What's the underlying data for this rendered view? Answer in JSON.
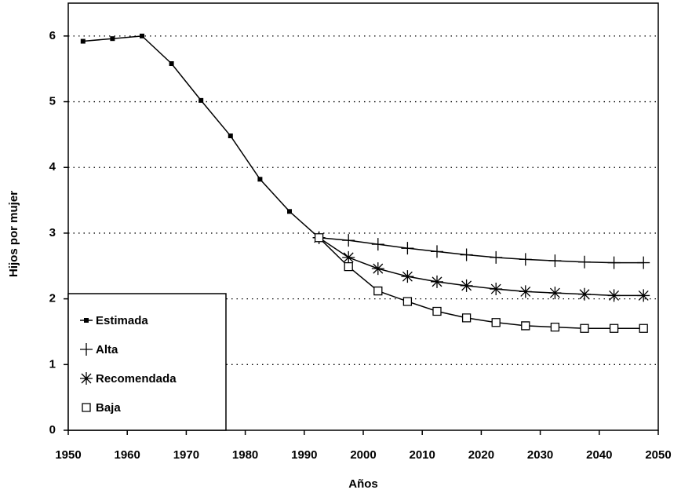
{
  "chart_data": {
    "type": "line",
    "x_label": "Años",
    "y_label": "Hijos por mujer",
    "x": [
      1952.5,
      1957.5,
      1962.5,
      1967.5,
      1972.5,
      1977.5,
      1982.5,
      1987.5,
      1992.5,
      1997.5,
      2002.5,
      2007.5,
      2012.5,
      2017.5,
      2022.5,
      2027.5,
      2032.5,
      2037.5,
      2042.5,
      2047.5
    ],
    "series": [
      {
        "name": "Estimada",
        "color": "#000000",
        "marker": "filled-square",
        "values": [
          5.92,
          5.96,
          6.0,
          5.58,
          5.02,
          4.48,
          3.82,
          3.33,
          2.93,
          null,
          null,
          null,
          null,
          null,
          null,
          null,
          null,
          null,
          null,
          null
        ]
      },
      {
        "name": "Alta",
        "color": "#000000",
        "marker": "plus",
        "values": [
          null,
          null,
          null,
          null,
          null,
          null,
          null,
          null,
          2.93,
          2.89,
          2.83,
          2.77,
          2.72,
          2.67,
          2.63,
          2.6,
          2.58,
          2.56,
          2.55,
          2.55
        ]
      },
      {
        "name": "Recomendada",
        "color": "#000000",
        "marker": "asterisk",
        "values": [
          null,
          null,
          null,
          null,
          null,
          null,
          null,
          null,
          2.93,
          2.63,
          2.46,
          2.34,
          2.26,
          2.2,
          2.15,
          2.11,
          2.09,
          2.07,
          2.05,
          2.05
        ]
      },
      {
        "name": "Baja",
        "color": "#000000",
        "marker": "open-square",
        "values": [
          null,
          null,
          null,
          null,
          null,
          null,
          null,
          null,
          2.93,
          2.49,
          2.12,
          1.96,
          1.81,
          1.71,
          1.64,
          1.59,
          1.57,
          1.55,
          1.55,
          1.55
        ]
      }
    ],
    "xlim": [
      1950,
      2050
    ],
    "xticks": [
      1950,
      1960,
      1970,
      1980,
      1990,
      2000,
      2010,
      2020,
      2030,
      2040,
      2050
    ],
    "ylim": [
      0,
      6.5
    ],
    "yticks": [
      0,
      1,
      2,
      3,
      4,
      5,
      6
    ],
    "grid": true,
    "legend": "lower left"
  }
}
